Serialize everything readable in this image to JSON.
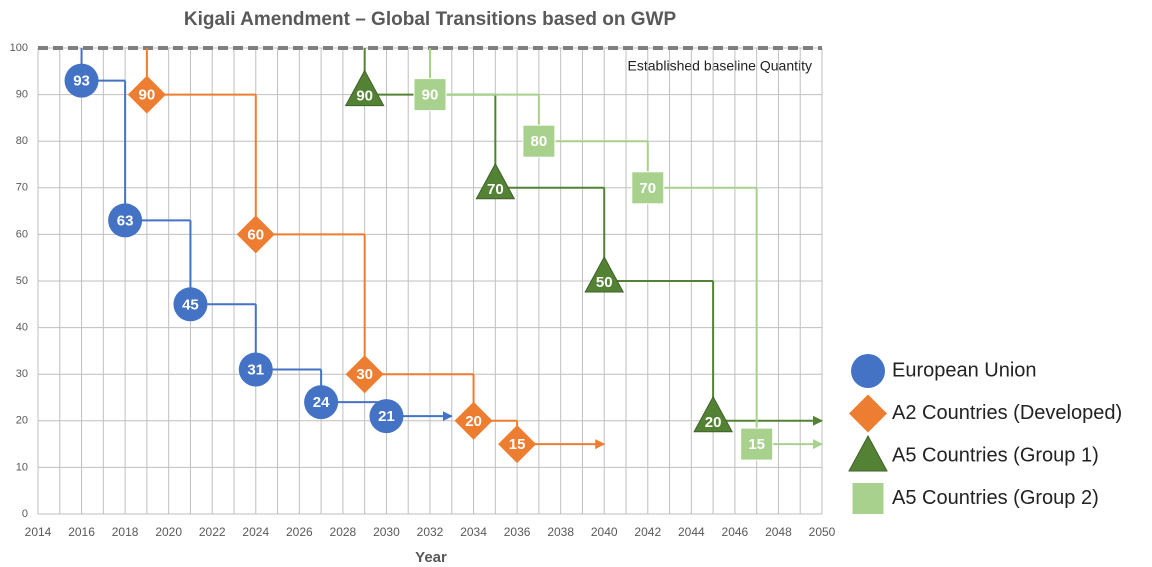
{
  "chart_data": {
    "type": "step",
    "title": "Kigali Amendment – Global Transitions based on GWP",
    "x_label": "Year",
    "annotation": "Established baseline Quantity",
    "baseline": 100,
    "xlim": [
      2014,
      2050
    ],
    "xticks": [
      2014,
      2016,
      2018,
      2020,
      2022,
      2024,
      2026,
      2028,
      2030,
      2032,
      2034,
      2036,
      2038,
      2040,
      2042,
      2044,
      2046,
      2048,
      2050
    ],
    "ylim": [
      0,
      100
    ],
    "yticks": [
      0,
      10,
      20,
      30,
      40,
      50,
      60,
      70,
      80,
      90,
      100
    ],
    "grid": true,
    "series": [
      {
        "name": "European Union",
        "color": "#4472c4",
        "marker": "circle",
        "x": [
          2016,
          2018,
          2021,
          2024,
          2027,
          2030
        ],
        "values": [
          93,
          63,
          45,
          31,
          24,
          21
        ],
        "arrow_to": 2033
      },
      {
        "name": "A2 Countries (Developed)",
        "color": "#ed7d31",
        "marker": "diamond",
        "x": [
          2019,
          2024,
          2029,
          2034,
          2036
        ],
        "values": [
          90,
          60,
          30,
          20,
          15
        ],
        "arrow_to": 2040
      },
      {
        "name": "A5 Countries (Group 1)",
        "color": "#548235",
        "marker": "triangle",
        "x": [
          2029,
          2035,
          2040,
          2045
        ],
        "values": [
          90,
          70,
          50,
          20
        ],
        "arrow_to": 2050
      },
      {
        "name": "A5 Countries (Group 2)",
        "color": "#a9d18e",
        "marker": "square",
        "x": [
          2032,
          2037,
          2042,
          2047
        ],
        "values": [
          90,
          80,
          70,
          15
        ],
        "arrow_to": 2050
      }
    ]
  }
}
